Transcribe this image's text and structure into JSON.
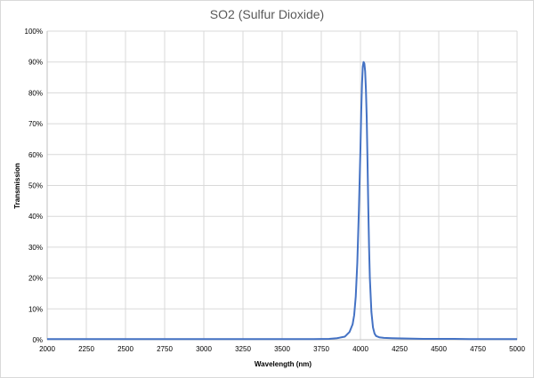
{
  "chart_data": {
    "type": "line",
    "title": "SO2 (Sulfur Dioxide)",
    "xlabel": "Wavelength (nm)",
    "ylabel": "Transmission",
    "xlim": [
      2000,
      5000
    ],
    "ylim": [
      0,
      100
    ],
    "x_ticks": [
      2000,
      2250,
      2500,
      2750,
      3000,
      3250,
      3500,
      3750,
      4000,
      4250,
      4500,
      4750,
      5000
    ],
    "y_ticks": [
      0,
      10,
      20,
      30,
      40,
      50,
      60,
      70,
      80,
      90,
      100
    ],
    "y_tick_suffix": "%",
    "grid": true,
    "legend": "none",
    "series_color": "#4472c4",
    "series": [
      {
        "x": [
          2000,
          2100,
          2200,
          2300,
          2400,
          2500,
          2600,
          2700,
          2800,
          2900,
          3000,
          3100,
          3200,
          3300,
          3400,
          3500,
          3600,
          3700,
          3800,
          3850,
          3900,
          3930,
          3950,
          3960,
          3970,
          3980,
          3990,
          4000,
          4005,
          4010,
          4015,
          4020,
          4025,
          4030,
          4035,
          4040,
          4045,
          4050,
          4055,
          4060,
          4070,
          4080,
          4090,
          4100,
          4120,
          4150,
          4200,
          4300,
          4400,
          4500,
          4600,
          4700,
          4800,
          4900,
          5000
        ],
        "y": [
          0.2,
          0.2,
          0.2,
          0.2,
          0.2,
          0.2,
          0.2,
          0.2,
          0.2,
          0.2,
          0.2,
          0.2,
          0.2,
          0.2,
          0.2,
          0.2,
          0.2,
          0.2,
          0.3,
          0.5,
          1,
          2.5,
          5,
          8,
          14,
          25,
          42,
          62,
          74,
          83,
          88.5,
          90,
          89.5,
          87,
          81,
          72,
          58,
          43,
          30,
          20,
          9,
          4,
          2,
          1.2,
          0.8,
          0.6,
          0.5,
          0.4,
          0.3,
          0.3,
          0.3,
          0.2,
          0.2,
          0.2,
          0.2
        ]
      }
    ]
  }
}
